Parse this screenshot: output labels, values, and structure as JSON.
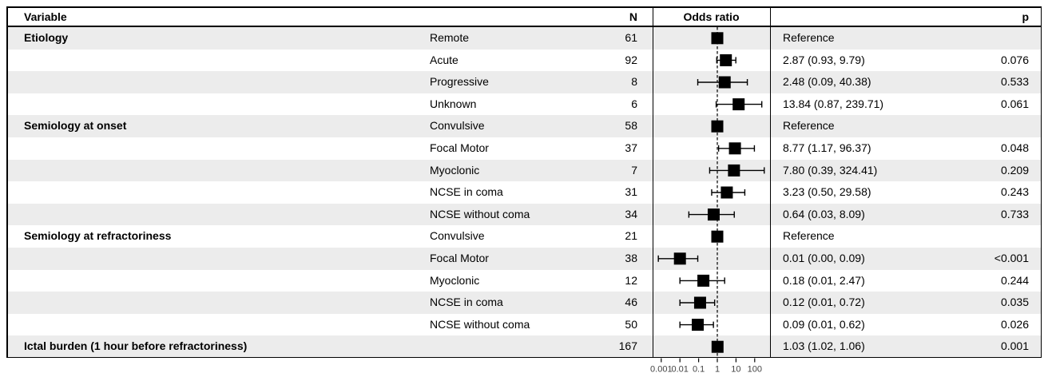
{
  "figure": {
    "header": {
      "variable": "Variable",
      "n": "N",
      "odds_ratio": "Odds ratio",
      "p": "p"
    },
    "stripe_color": "#ececec",
    "marker_color": "#000000",
    "axis_label_color": "#444444"
  },
  "chart_data": {
    "type": "forest",
    "title": "",
    "xlabel": "",
    "x_scale": "log10",
    "reference_line": 1,
    "legend": "none",
    "grid": "off",
    "x_ticks": [
      {
        "value": 0.001,
        "label": "0.001"
      },
      {
        "value": 0.01,
        "label": "0.01"
      },
      {
        "value": 0.1,
        "label": "0.1"
      },
      {
        "value": 1,
        "label": "1"
      },
      {
        "value": 10,
        "label": "10"
      },
      {
        "value": 100,
        "label": "100"
      }
    ],
    "rows": [
      {
        "variable": "Etiology",
        "category": "Remote",
        "n": "61",
        "estimate": 1,
        "ci_low": null,
        "ci_high": null,
        "label": "Reference",
        "p": "",
        "reference": true
      },
      {
        "variable": "",
        "category": "Acute",
        "n": "92",
        "estimate": 2.87,
        "ci_low": 0.93,
        "ci_high": 9.79,
        "label": "2.87 (0.93, 9.79)",
        "p": "0.076",
        "reference": false
      },
      {
        "variable": "",
        "category": "Progressive",
        "n": "8",
        "estimate": 2.48,
        "ci_low": 0.09,
        "ci_high": 40.38,
        "label": "2.48 (0.09, 40.38)",
        "p": "0.533",
        "reference": false
      },
      {
        "variable": "",
        "category": "Unknown",
        "n": "6",
        "estimate": 13.84,
        "ci_low": 0.87,
        "ci_high": 239.71,
        "label": "13.84 (0.87, 239.71)",
        "p": "0.061",
        "reference": false
      },
      {
        "variable": "Semiology at onset",
        "category": "Convulsive",
        "n": "58",
        "estimate": 1,
        "ci_low": null,
        "ci_high": null,
        "label": "Reference",
        "p": "",
        "reference": true
      },
      {
        "variable": "",
        "category": "Focal Motor",
        "n": "37",
        "estimate": 8.77,
        "ci_low": 1.17,
        "ci_high": 96.37,
        "label": "8.77 (1.17, 96.37)",
        "p": "0.048",
        "reference": false
      },
      {
        "variable": "",
        "category": "Myoclonic",
        "n": "7",
        "estimate": 7.8,
        "ci_low": 0.39,
        "ci_high": 324.41,
        "label": "7.80 (0.39, 324.41)",
        "p": "0.209",
        "reference": false
      },
      {
        "variable": "",
        "category": "NCSE in coma",
        "n": "31",
        "estimate": 3.23,
        "ci_low": 0.5,
        "ci_high": 29.58,
        "label": "3.23 (0.50, 29.58)",
        "p": "0.243",
        "reference": false
      },
      {
        "variable": "",
        "category": "NCSE without coma",
        "n": "34",
        "estimate": 0.64,
        "ci_low": 0.03,
        "ci_high": 8.09,
        "label": "0.64 (0.03, 8.09)",
        "p": "0.733",
        "reference": false
      },
      {
        "variable": "Semiology at refractoriness",
        "category": "Convulsive",
        "n": "21",
        "estimate": 1,
        "ci_low": null,
        "ci_high": null,
        "label": "Reference",
        "p": "",
        "reference": true
      },
      {
        "variable": "",
        "category": "Focal Motor",
        "n": "38",
        "estimate": 0.01,
        "ci_low": 0.0007,
        "ci_high": 0.09,
        "label": "0.01 (0.00, 0.09)",
        "p": "<0.001",
        "reference": false
      },
      {
        "variable": "",
        "category": "Myoclonic",
        "n": "12",
        "estimate": 0.18,
        "ci_low": 0.01,
        "ci_high": 2.47,
        "label": "0.18 (0.01, 2.47)",
        "p": "0.244",
        "reference": false
      },
      {
        "variable": "",
        "category": "NCSE in coma",
        "n": "46",
        "estimate": 0.12,
        "ci_low": 0.01,
        "ci_high": 0.72,
        "label": "0.12 (0.01, 0.72)",
        "p": "0.035",
        "reference": false
      },
      {
        "variable": "",
        "category": "NCSE without coma",
        "n": "50",
        "estimate": 0.09,
        "ci_low": 0.01,
        "ci_high": 0.62,
        "label": "0.09 (0.01, 0.62)",
        "p": "0.026",
        "reference": false
      },
      {
        "variable": "Ictal burden (1 hour before refractoriness)",
        "category": "",
        "n": "167",
        "estimate": 1.03,
        "ci_low": 1.02,
        "ci_high": 1.06,
        "label": "1.03 (1.02, 1.06)",
        "p": "0.001",
        "reference": false
      }
    ]
  }
}
